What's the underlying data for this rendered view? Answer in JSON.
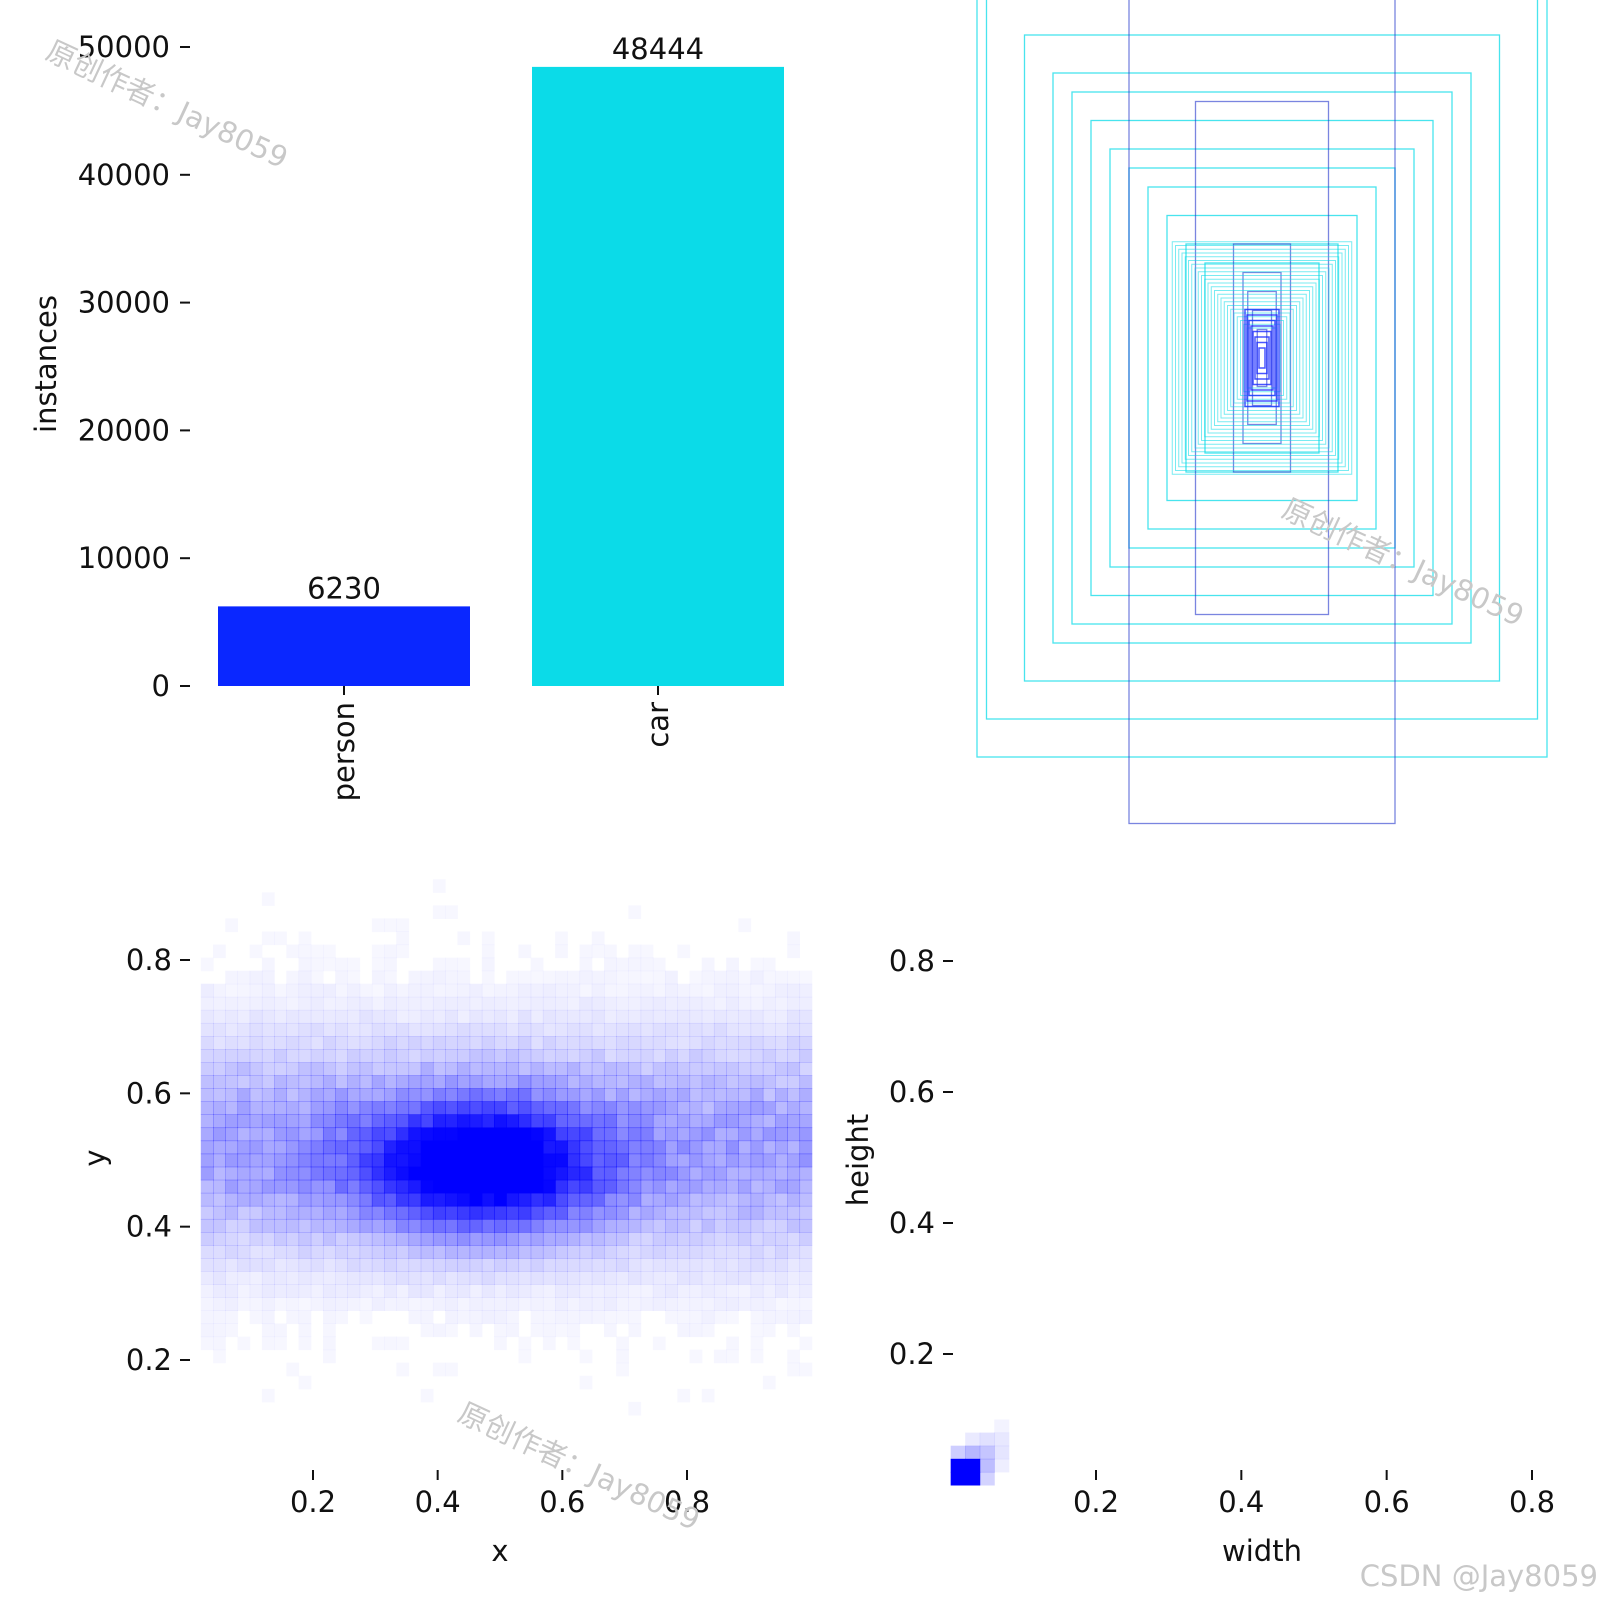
{
  "colors": {
    "person": "#0a27ff",
    "car": "#0bdbe8",
    "heat": "#0000ff"
  },
  "watermark": "原创作者：Jay8059",
  "credit": "CSDN @Jay8059",
  "chart_data": [
    {
      "type": "bar",
      "ylabel": "instances",
      "categories": [
        "person",
        "car"
      ],
      "values": [
        6230,
        48444
      ],
      "value_labels": [
        "6230",
        "48444"
      ],
      "ylim": [
        0,
        50000
      ],
      "yticks": [
        0,
        10000,
        20000,
        30000,
        40000,
        50000
      ],
      "ytick_labels": [
        "0",
        "10000",
        "20000",
        "30000",
        "40000",
        "50000"
      ]
    },
    {
      "type": "box-overlay",
      "note_series": [
        {
          "class": "car",
          "boxes": [
            [
              0.3,
              0.42
            ],
            [
              0.29,
              0.38
            ],
            [
              0.25,
              0.34
            ],
            [
              0.22,
              0.3
            ],
            [
              0.2,
              0.28
            ],
            [
              0.18,
              0.25
            ],
            [
              0.16,
              0.22
            ],
            [
              0.14,
              0.2
            ],
            [
              0.12,
              0.18
            ],
            [
              0.1,
              0.15
            ],
            [
              0.08,
              0.12
            ],
            [
              0.06,
              0.1
            ]
          ]
        },
        {
          "class": "person",
          "boxes": [
            [
              0.14,
              0.49
            ],
            [
              0.07,
              0.27
            ],
            [
              0.03,
              0.12
            ],
            [
              0.02,
              0.09
            ],
            [
              0.015,
              0.07
            ],
            [
              0.01,
              0.05
            ],
            [
              0.005,
              0.03
            ]
          ]
        }
      ]
    },
    {
      "type": "heatmap",
      "xlabel": "x",
      "ylabel": "y",
      "xlim": [
        0,
        1
      ],
      "ylim": [
        0,
        1
      ],
      "xticks": [
        0.2,
        0.4,
        0.6,
        0.8
      ],
      "xtick_labels": [
        "0.2",
        "0.4",
        "0.6",
        "0.8"
      ],
      "yticks": [
        0.2,
        0.4,
        0.6,
        0.8
      ],
      "ytick_labels": [
        "0.2",
        "0.4",
        "0.6",
        "0.8"
      ],
      "peak": [
        0.47,
        0.49
      ]
    },
    {
      "type": "heatmap",
      "xlabel": "width",
      "ylabel": "height",
      "xlim": [
        0,
        1
      ],
      "ylim": [
        0,
        1
      ],
      "xticks": [
        0.2,
        0.4,
        0.6,
        0.8
      ],
      "xtick_labels": [
        "0.2",
        "0.4",
        "0.6",
        "0.8"
      ],
      "yticks": [
        0.2,
        0.4,
        0.6,
        0.8
      ],
      "ytick_labels": [
        "0.2",
        "0.4",
        "0.6",
        "0.8"
      ],
      "peak": [
        0.01,
        0.02
      ]
    }
  ]
}
